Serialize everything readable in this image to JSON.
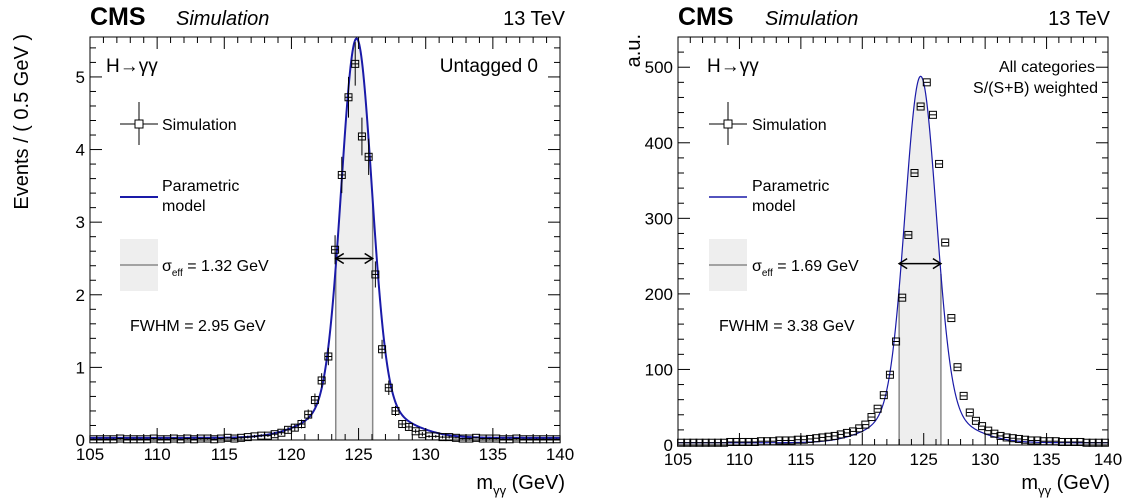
{
  "chart_data": [
    {
      "type": "line",
      "header_left": "CMS",
      "header_sim": "Simulation",
      "header_right": "13 TeV",
      "process": "H→γγ",
      "category": "Untagged 0",
      "xlabel": "m",
      "xlabel_sub": "γγ",
      "xlabel_unit": " (GeV)",
      "ylabel": "Events / ( 0.5 GeV )",
      "xlim": [
        105,
        140
      ],
      "ylim": [
        0,
        5.55
      ],
      "xticks": [
        105,
        110,
        115,
        120,
        125,
        130,
        135,
        140
      ],
      "yticks": [
        0,
        1,
        2,
        3,
        4,
        5
      ],
      "legend": {
        "sim": "Simulation",
        "model_line1": "Parametric",
        "model_line2": "model",
        "sigma_symbol": "σ",
        "sigma_sub": "eff",
        "sigma_text": " = 1.32 GeV",
        "fwhm": "FWHM = 2.95 GeV"
      },
      "model": {
        "mean": 124.85,
        "amp": 5.0,
        "sigma": 1.12,
        "bkg": 0.03,
        "tail_amp": 0.5,
        "tail_sigma": 3.0
      },
      "sigma_eff_range": [
        123.3,
        126.05
      ],
      "sigma_arrow_y": 2.5,
      "series": [
        {
          "name": "Simulation",
          "x": [
            105.25,
            105.75,
            106.25,
            106.75,
            107.25,
            107.75,
            108.25,
            108.75,
            109.25,
            109.75,
            110.25,
            110.75,
            111.25,
            111.75,
            112.25,
            112.75,
            113.25,
            113.75,
            114.25,
            114.75,
            115.25,
            115.75,
            116.25,
            116.75,
            117.25,
            117.75,
            118.25,
            118.75,
            119.25,
            119.75,
            120.25,
            120.75,
            121.25,
            121.75,
            122.25,
            122.75,
            123.25,
            123.75,
            124.25,
            124.75,
            125.25,
            125.75,
            126.25,
            126.75,
            127.25,
            127.75,
            128.25,
            128.75,
            129.25,
            129.75,
            130.25,
            130.75,
            131.25,
            131.75,
            132.25,
            132.75,
            133.25,
            133.75,
            134.25,
            134.75,
            135.25,
            135.75,
            136.25,
            136.75,
            137.25,
            137.75,
            138.25,
            138.75,
            139.25,
            139.75
          ],
          "y": [
            0.01,
            0.01,
            0.01,
            0.01,
            0.02,
            0.01,
            0.01,
            0.01,
            0.01,
            0.02,
            0.01,
            0.01,
            0.02,
            0.01,
            0.02,
            0.01,
            0.02,
            0.02,
            0.01,
            0.02,
            0.03,
            0.02,
            0.03,
            0.04,
            0.05,
            0.06,
            0.06,
            0.08,
            0.1,
            0.14,
            0.17,
            0.22,
            0.35,
            0.55,
            0.82,
            1.15,
            2.62,
            3.65,
            4.72,
            5.18,
            4.18,
            3.9,
            2.28,
            1.25,
            0.72,
            0.4,
            0.22,
            0.18,
            0.12,
            0.08,
            0.05,
            0.05,
            0.04,
            0.04,
            0.03,
            0.02,
            0.02,
            0.03,
            0.02,
            0.02,
            0.02,
            0.01,
            0.01,
            0.02,
            0.01,
            0.01,
            0.01,
            0.01,
            0.01,
            0.01
          ],
          "err": [
            0.01,
            0.01,
            0.01,
            0.01,
            0.01,
            0.01,
            0.01,
            0.01,
            0.01,
            0.01,
            0.01,
            0.01,
            0.01,
            0.01,
            0.01,
            0.01,
            0.01,
            0.01,
            0.01,
            0.01,
            0.01,
            0.01,
            0.02,
            0.02,
            0.02,
            0.02,
            0.02,
            0.03,
            0.03,
            0.04,
            0.05,
            0.06,
            0.07,
            0.09,
            0.1,
            0.12,
            0.2,
            0.25,
            0.28,
            0.3,
            0.26,
            0.25,
            0.18,
            0.13,
            0.1,
            0.07,
            0.05,
            0.04,
            0.03,
            0.03,
            0.02,
            0.02,
            0.02,
            0.02,
            0.01,
            0.01,
            0.01,
            0.01,
            0.01,
            0.01,
            0.01,
            0.01,
            0.01,
            0.01,
            0.01,
            0.01,
            0.01,
            0.01,
            0.01,
            0.01
          ]
        },
        {
          "name": "Parametric model"
        }
      ]
    },
    {
      "type": "line",
      "header_left": "CMS",
      "header_sim": "Simulation",
      "header_right": "13 TeV",
      "process": "H→γγ",
      "category_line1": "All categories",
      "category_line2": "S/(S+B) weighted",
      "xlabel": "m",
      "xlabel_sub": "γγ",
      "xlabel_unit": " (GeV)",
      "ylabel": "a.u.",
      "xlim": [
        105,
        140
      ],
      "ylim": [
        0,
        540
      ],
      "xticks": [
        105,
        110,
        115,
        120,
        125,
        130,
        135,
        140
      ],
      "yticks": [
        0,
        100,
        200,
        300,
        400,
        500
      ],
      "legend": {
        "sim": "Simulation",
        "model_line1": "Parametric",
        "model_line2": "model",
        "sigma_symbol": "σ",
        "sigma_sub": "eff",
        "sigma_text": " = 1.69 GeV",
        "fwhm": "FWHM = 3.38 GeV"
      },
      "model": {
        "mean": 124.75,
        "amp": 440,
        "sigma": 1.25,
        "bkg": 3,
        "tail_amp": 45,
        "tail_sigma": 3.2
      },
      "sigma_eff_range": [
        123.0,
        126.4
      ],
      "sigma_arrow_y": 240,
      "series": [
        {
          "name": "Simulation",
          "x": [
            105.25,
            105.75,
            106.25,
            106.75,
            107.25,
            107.75,
            108.25,
            108.75,
            109.25,
            109.75,
            110.25,
            110.75,
            111.25,
            111.75,
            112.25,
            112.75,
            113.25,
            113.75,
            114.25,
            114.75,
            115.25,
            115.75,
            116.25,
            116.75,
            117.25,
            117.75,
            118.25,
            118.75,
            119.25,
            119.75,
            120.25,
            120.75,
            121.25,
            121.75,
            122.25,
            122.75,
            123.25,
            123.75,
            124.25,
            124.75,
            125.25,
            125.75,
            126.25,
            126.75,
            127.25,
            127.75,
            128.25,
            128.75,
            129.25,
            129.75,
            130.25,
            130.75,
            131.25,
            131.75,
            132.25,
            132.75,
            133.25,
            133.75,
            134.25,
            134.75,
            135.25,
            135.75,
            136.25,
            136.75,
            137.25,
            137.75,
            138.25,
            138.75,
            139.25,
            139.75
          ],
          "y": [
            3,
            3,
            3,
            3,
            3,
            3,
            3,
            3,
            4,
            4,
            4,
            4,
            4,
            5,
            5,
            5,
            6,
            6,
            6,
            7,
            7,
            8,
            9,
            10,
            11,
            12,
            14,
            16,
            18,
            22,
            27,
            37,
            48,
            66,
            93,
            137,
            195,
            278,
            360,
            448,
            480,
            437,
            372,
            268,
            168,
            103,
            65,
            43,
            32,
            25,
            19,
            15,
            12,
            10,
            9,
            8,
            7,
            6,
            6,
            5,
            5,
            5,
            4,
            4,
            4,
            4,
            3,
            3,
            3,
            3
          ],
          "err": []
        },
        {
          "name": "Parametric model"
        }
      ]
    }
  ]
}
